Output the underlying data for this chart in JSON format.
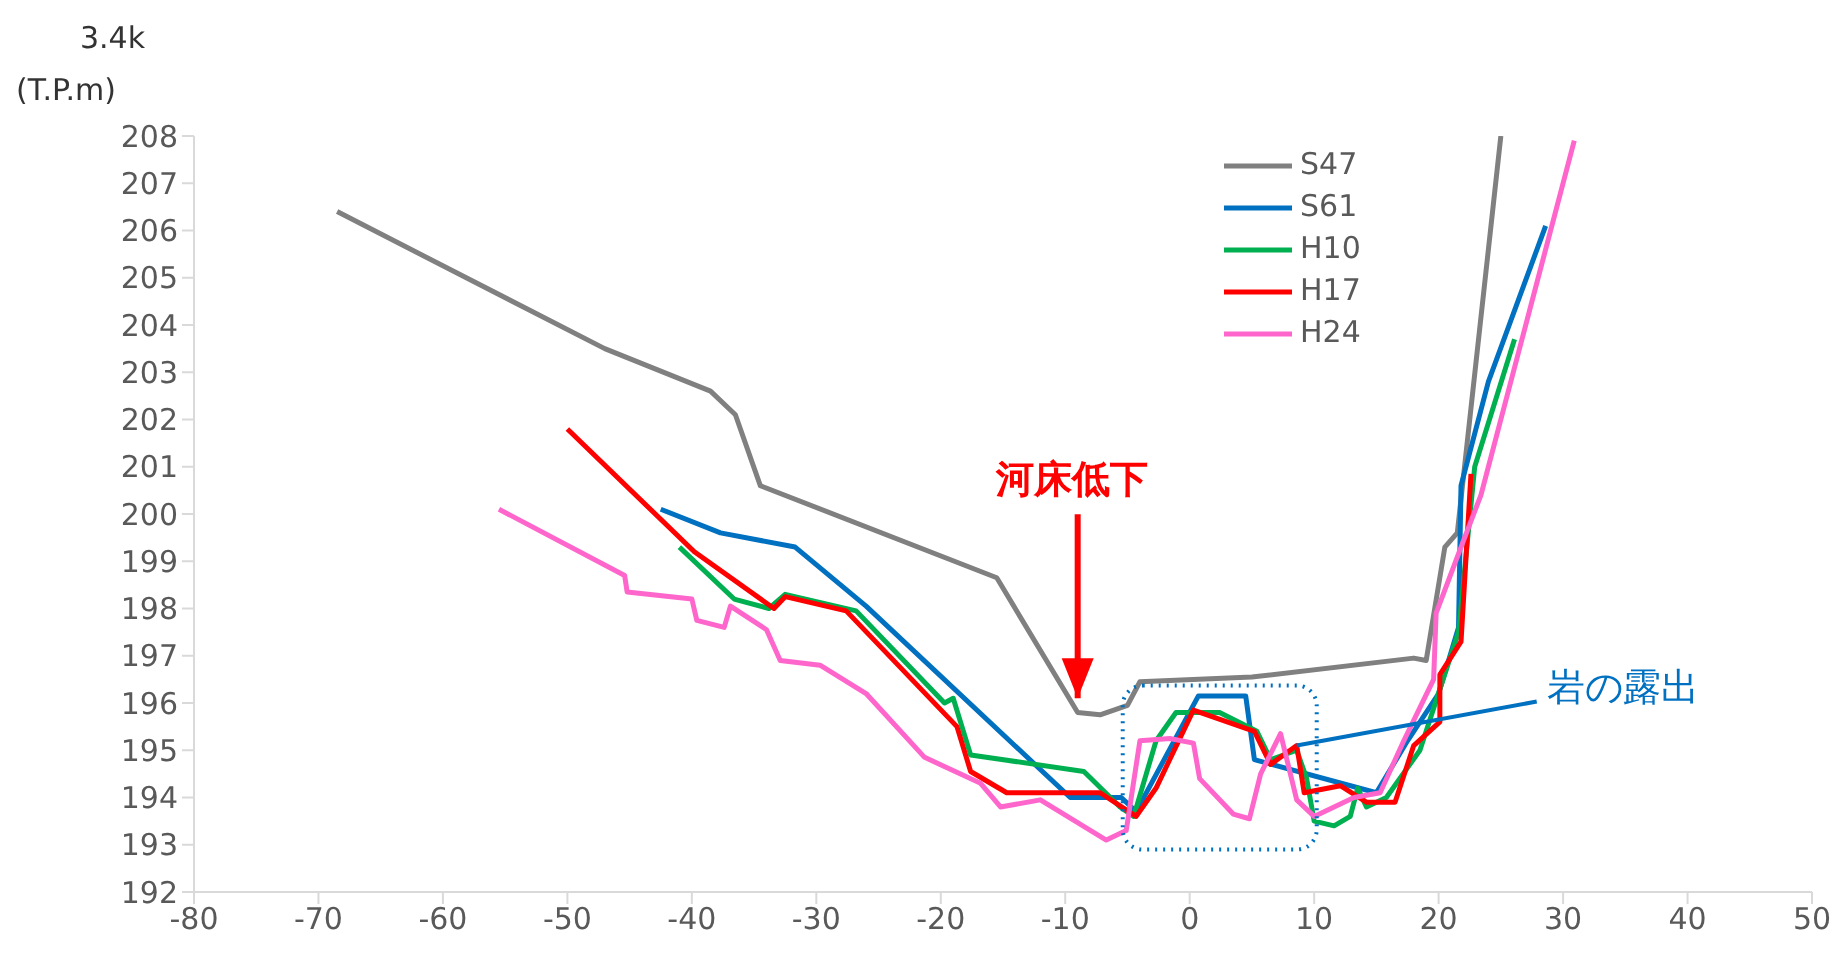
{
  "chart_data": {
    "type": "line",
    "xlim": [
      -80,
      50
    ],
    "xticks": [
      -80,
      -70,
      -60,
      -50,
      -40,
      -30,
      -20,
      -10,
      0,
      10,
      20,
      30,
      40,
      50
    ],
    "ylim": [
      192,
      208
    ],
    "yticks": [
      192,
      193,
      194,
      195,
      196,
      197,
      198,
      199,
      200,
      201,
      202,
      203,
      204,
      205,
      206,
      207,
      208
    ],
    "grid": false,
    "legend": "top right",
    "marker": "none",
    "line_style": "solid",
    "annotations": [
      "3.4k",
      "(T.P.m)",
      {
        "text": "河床低下",
        "x": -9,
        "y": 196.1
      },
      {
        "text": "岩の露出",
        "x": 8.6,
        "y": 195.1
      }
    ],
    "series": [
      {
        "name": "S47",
        "color": "#808080",
        "x": [
          -68.5,
          -47,
          -38.5,
          -36.5,
          -34.5,
          -15.5,
          -9,
          -7.2,
          -5,
          -4,
          5,
          18,
          19,
          20.5,
          21.5,
          25
        ],
        "values": [
          206.4,
          203.5,
          202.6,
          202.1,
          200.6,
          198.65,
          195.8,
          195.75,
          195.95,
          196.45,
          196.55,
          196.95,
          196.9,
          199.3,
          199.6,
          208
        ]
      },
      {
        "name": "S61",
        "color": "#0070c0",
        "x": [
          -42.5,
          -37.7,
          -31.7,
          -26,
          -9.6,
          -5.5,
          -4.3,
          0.7,
          4.5,
          5.2,
          15,
          17.5,
          20,
          21.6,
          21.8,
          24,
          28.6
        ],
        "values": [
          200.1,
          199.6,
          199.3,
          198.05,
          194,
          194,
          193.7,
          196.15,
          196.15,
          194.8,
          194.1,
          195.2,
          196.2,
          197.6,
          200.6,
          202.8,
          206.1
        ]
      },
      {
        "name": "H10",
        "color": "#00b050",
        "x": [
          -41,
          -36.6,
          -33.8,
          -32.5,
          -26.8,
          -19.7,
          -19,
          -17.6,
          -8.5,
          -5.6,
          -4.5,
          -2.7,
          -1.1,
          2.4,
          5.4,
          6.5,
          8.6,
          9.4,
          10,
          11.6,
          12.9,
          13.5,
          14.2,
          15.8,
          18.5,
          21.6,
          22.9,
          26.1
        ],
        "values": [
          199.3,
          198.2,
          198,
          198.3,
          197.95,
          196,
          196.1,
          194.9,
          194.55,
          193.8,
          193.6,
          195.2,
          195.8,
          195.8,
          195.4,
          194.8,
          195,
          194.4,
          193.5,
          193.4,
          193.6,
          194.2,
          193.8,
          194,
          195,
          197.5,
          201,
          203.7
        ]
      },
      {
        "name": "H17",
        "color": "#ff0000",
        "x": [
          -50,
          -39.8,
          -33.4,
          -32.5,
          -27.6,
          -18.7,
          -17.6,
          -14.7,
          -7.2,
          -4.3,
          -2.7,
          0.3,
          5.2,
          6.5,
          8.6,
          9.2,
          12.1,
          14.2,
          16.5,
          18,
          20.1,
          20.1,
          21.8,
          22.6
        ],
        "values": [
          201.8,
          199.2,
          198,
          198.25,
          197.95,
          195.5,
          194.55,
          194.1,
          194.1,
          193.6,
          194.2,
          195.85,
          195.4,
          194.7,
          195.1,
          194.1,
          194.25,
          193.9,
          193.9,
          195.1,
          195.6,
          196.6,
          197.3,
          200.85
        ]
      },
      {
        "name": "H24",
        "color": "#ff66cc",
        "x": [
          -55.5,
          -45.4,
          -45.2,
          -40,
          -39.6,
          -37.4,
          -36.9,
          -34,
          -32.9,
          -29.7,
          -26,
          -21.3,
          -16.8,
          -15.2,
          -12,
          -6.7,
          -5.1,
          -4,
          -1.6,
          0.3,
          0.8,
          3.5,
          4.8,
          5.7,
          7.3,
          8.6,
          10,
          13.2,
          15.3,
          17.2,
          19.6,
          19.8,
          21.8,
          23.4,
          30.9
        ],
        "values": [
          200.1,
          198.7,
          198.35,
          198.2,
          197.75,
          197.6,
          198.05,
          197.55,
          196.9,
          196.8,
          196.2,
          194.85,
          194.3,
          193.8,
          193.95,
          193.1,
          193.3,
          195.2,
          195.25,
          195.15,
          194.4,
          193.65,
          193.55,
          194.5,
          195.35,
          193.95,
          193.6,
          194,
          194.1,
          195.2,
          196.5,
          197.9,
          199.3,
          200.4,
          207.9
        ]
      }
    ]
  }
}
